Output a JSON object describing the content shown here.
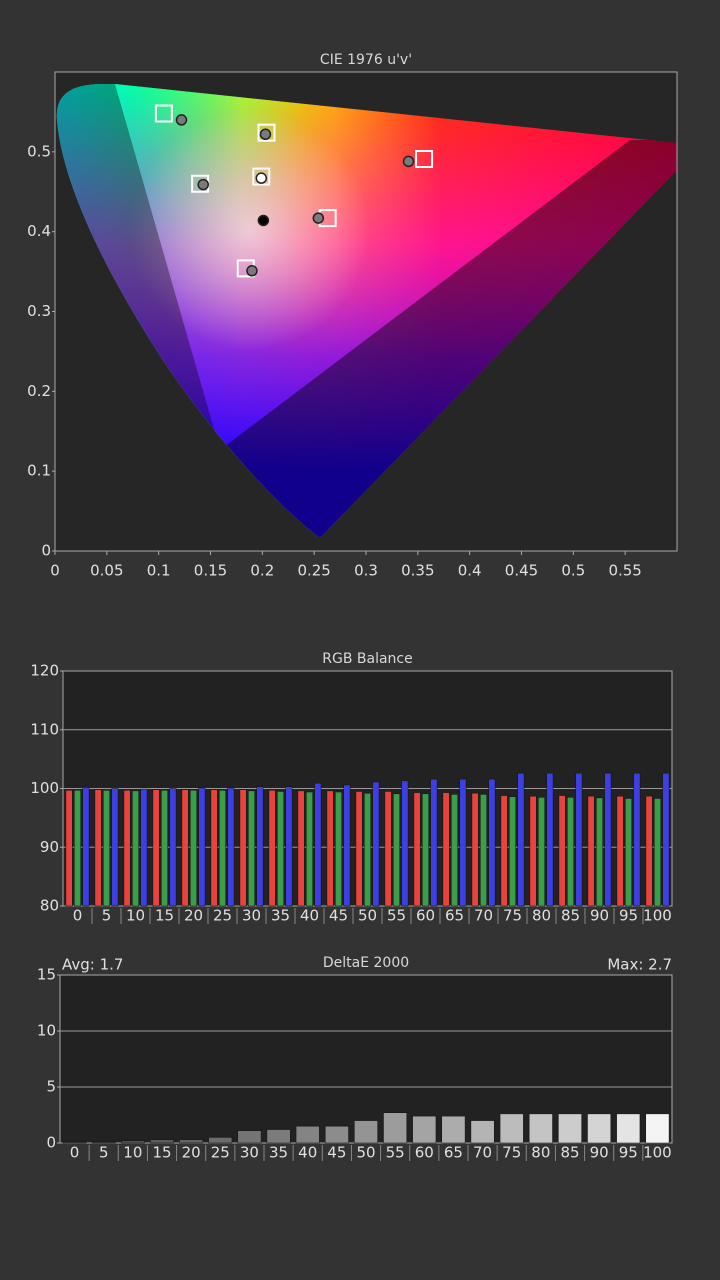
{
  "chart_data": [
    {
      "type": "scatter",
      "title": "CIE 1976 u'v'",
      "xlim": [
        0,
        0.6
      ],
      "ylim": [
        0,
        0.6
      ],
      "xticks": [
        0,
        0.05,
        0.1,
        0.15,
        0.2,
        0.25,
        0.3,
        0.35,
        0.4,
        0.45,
        0.5,
        0.55
      ],
      "yticks": [
        0,
        0.1,
        0.2,
        0.3,
        0.4,
        0.5
      ],
      "series": [
        {
          "marker": "square",
          "color": "#ffffff",
          "x": [
            0.105,
            0.204,
            0.356,
            0.14,
            0.199,
            0.263,
            0.184
          ],
          "y": [
            0.548,
            0.524,
            0.491,
            0.46,
            0.469,
            0.417,
            0.354
          ]
        },
        {
          "marker": "circle",
          "color": "#7a7a7a",
          "x": [
            0.122,
            0.203,
            0.341,
            0.143,
            0.254,
            0.19
          ],
          "y": [
            0.54,
            0.522,
            0.488,
            0.459,
            0.417,
            0.351
          ]
        },
        {
          "marker": "circle",
          "color": "#ffffff",
          "x": [
            0.199
          ],
          "y": [
            0.467
          ]
        },
        {
          "marker": "circle",
          "color": "#000000",
          "x": [
            0.201
          ],
          "y": [
            0.414
          ]
        }
      ]
    },
    {
      "type": "bar",
      "title": "RGB Balance",
      "categories": [
        "0",
        "5",
        "10",
        "15",
        "20",
        "25",
        "30",
        "35",
        "40",
        "45",
        "50",
        "55",
        "60",
        "65",
        "70",
        "75",
        "80",
        "85",
        "90",
        "95",
        "100"
      ],
      "ylim": [
        80,
        120
      ],
      "yticks": [
        80,
        90,
        100,
        110,
        120
      ],
      "grid": true,
      "series": [
        {
          "color": "#e8433e",
          "values": [
            99.7,
            99.8,
            99.7,
            99.8,
            99.8,
            99.8,
            99.8,
            99.7,
            99.6,
            99.6,
            99.5,
            99.5,
            99.3,
            99.3,
            99.2,
            98.8,
            98.7,
            98.8,
            98.7,
            98.7,
            98.7
          ]
        },
        {
          "color": "#3b9f4a",
          "values": [
            99.7,
            99.7,
            99.6,
            99.7,
            99.7,
            99.7,
            99.6,
            99.5,
            99.4,
            99.4,
            99.2,
            99.1,
            99.1,
            99.0,
            99.0,
            98.6,
            98.5,
            98.5,
            98.4,
            98.3,
            98.3
          ]
        },
        {
          "color": "#3d3fe2",
          "values": [
            100.2,
            100.0,
            99.9,
            100.0,
            100.1,
            100.1,
            100.3,
            100.3,
            100.9,
            100.6,
            101.1,
            101.3,
            101.6,
            101.6,
            101.6,
            102.6,
            102.6,
            102.6,
            102.6,
            102.6,
            102.6
          ]
        }
      ]
    },
    {
      "type": "bar",
      "title": "DeltaE 2000",
      "annotations": [
        "Avg: 1.7",
        "Max: 2.7"
      ],
      "categories": [
        "0",
        "5",
        "10",
        "15",
        "20",
        "25",
        "30",
        "35",
        "40",
        "45",
        "50",
        "55",
        "60",
        "65",
        "70",
        "75",
        "80",
        "85",
        "90",
        "95",
        "100"
      ],
      "ylim": [
        0,
        15
      ],
      "yticks": [
        0,
        5,
        10,
        15
      ],
      "grid": true,
      "series": [
        {
          "colors": [
            "#444444",
            "#4c4c4c",
            "#545454",
            "#5c5c5c",
            "#646464",
            "#6c6c6c",
            "#747474",
            "#7c7c7c",
            "#848484",
            "#8c8c8c",
            "#949494",
            "#9c9c9c",
            "#a4a4a4",
            "#acacac",
            "#b4b4b4",
            "#bcbcbc",
            "#c4c4c4",
            "#cccccc",
            "#d4d4d4",
            "#e4e4e4",
            "#f4f4f4"
          ],
          "values": [
            0.1,
            0.1,
            0.2,
            0.3,
            0.3,
            0.5,
            1.1,
            1.2,
            1.5,
            1.5,
            2.0,
            2.7,
            2.4,
            2.4,
            2.0,
            2.6,
            2.6,
            2.6,
            2.6,
            2.6,
            2.6
          ]
        }
      ]
    }
  ]
}
